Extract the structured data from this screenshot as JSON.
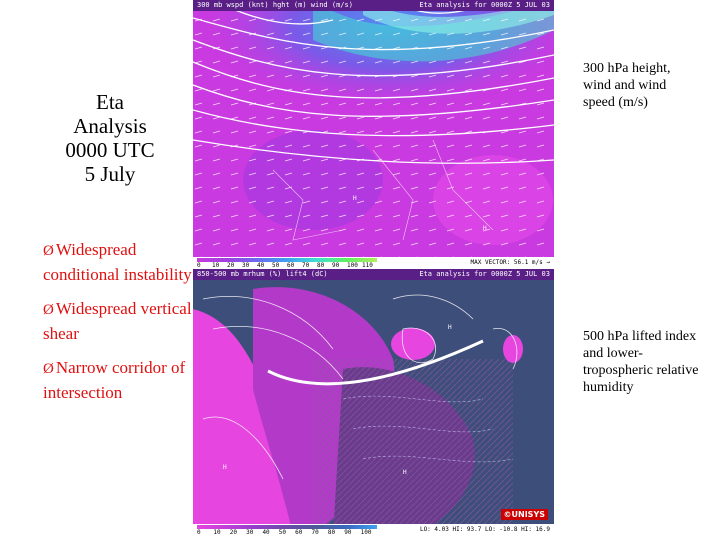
{
  "title": {
    "line1": "Eta",
    "line2": "Analysis",
    "line3": "0000 UTC",
    "line4": "5 July"
  },
  "bullets": [
    {
      "arrow": "Ø",
      "text": "Widespread conditional instability"
    },
    {
      "arrow": "Ø",
      "text": "Widespread vertical shear"
    },
    {
      "arrow": "Ø",
      "text": "Narrow corridor of intersection"
    }
  ],
  "top_panel": {
    "header_left": "300 mb wspd (knt) hght (m) wind (m/s)",
    "header_right": "Eta analysis for 0000Z  5 JUL 03",
    "scale_ticks": [
      "0",
      "10",
      "20",
      "30",
      "40",
      "50",
      "60",
      "70",
      "80",
      "90",
      "100",
      "110"
    ],
    "scale_right": "MAX VECTOR: 56.1 m/s →",
    "caption": "300 hPa height, wind and wind speed (m/s)"
  },
  "bottom_panel": {
    "header_left": "850-500 mb mrhum (%) lift4 (dC)",
    "header_right": "Eta analysis for 0000Z  5 JUL 03",
    "scale_ticks": [
      "0",
      "10",
      "20",
      "30",
      "40",
      "50",
      "60",
      "70",
      "80",
      "90",
      "100"
    ],
    "scale_right": "LO: 4.03  HI: 93.7  LO: -10.8  HI: 16.9",
    "logo": "©UNISYS",
    "caption": "500 hPa lifted index and lower-tropospheric relative humidity"
  },
  "colors": {
    "bullet_text": "#e01010",
    "map_magenta": "#c93ae0",
    "map_dark": "#3e4e7a",
    "jet_core": "#3fe0d0"
  }
}
